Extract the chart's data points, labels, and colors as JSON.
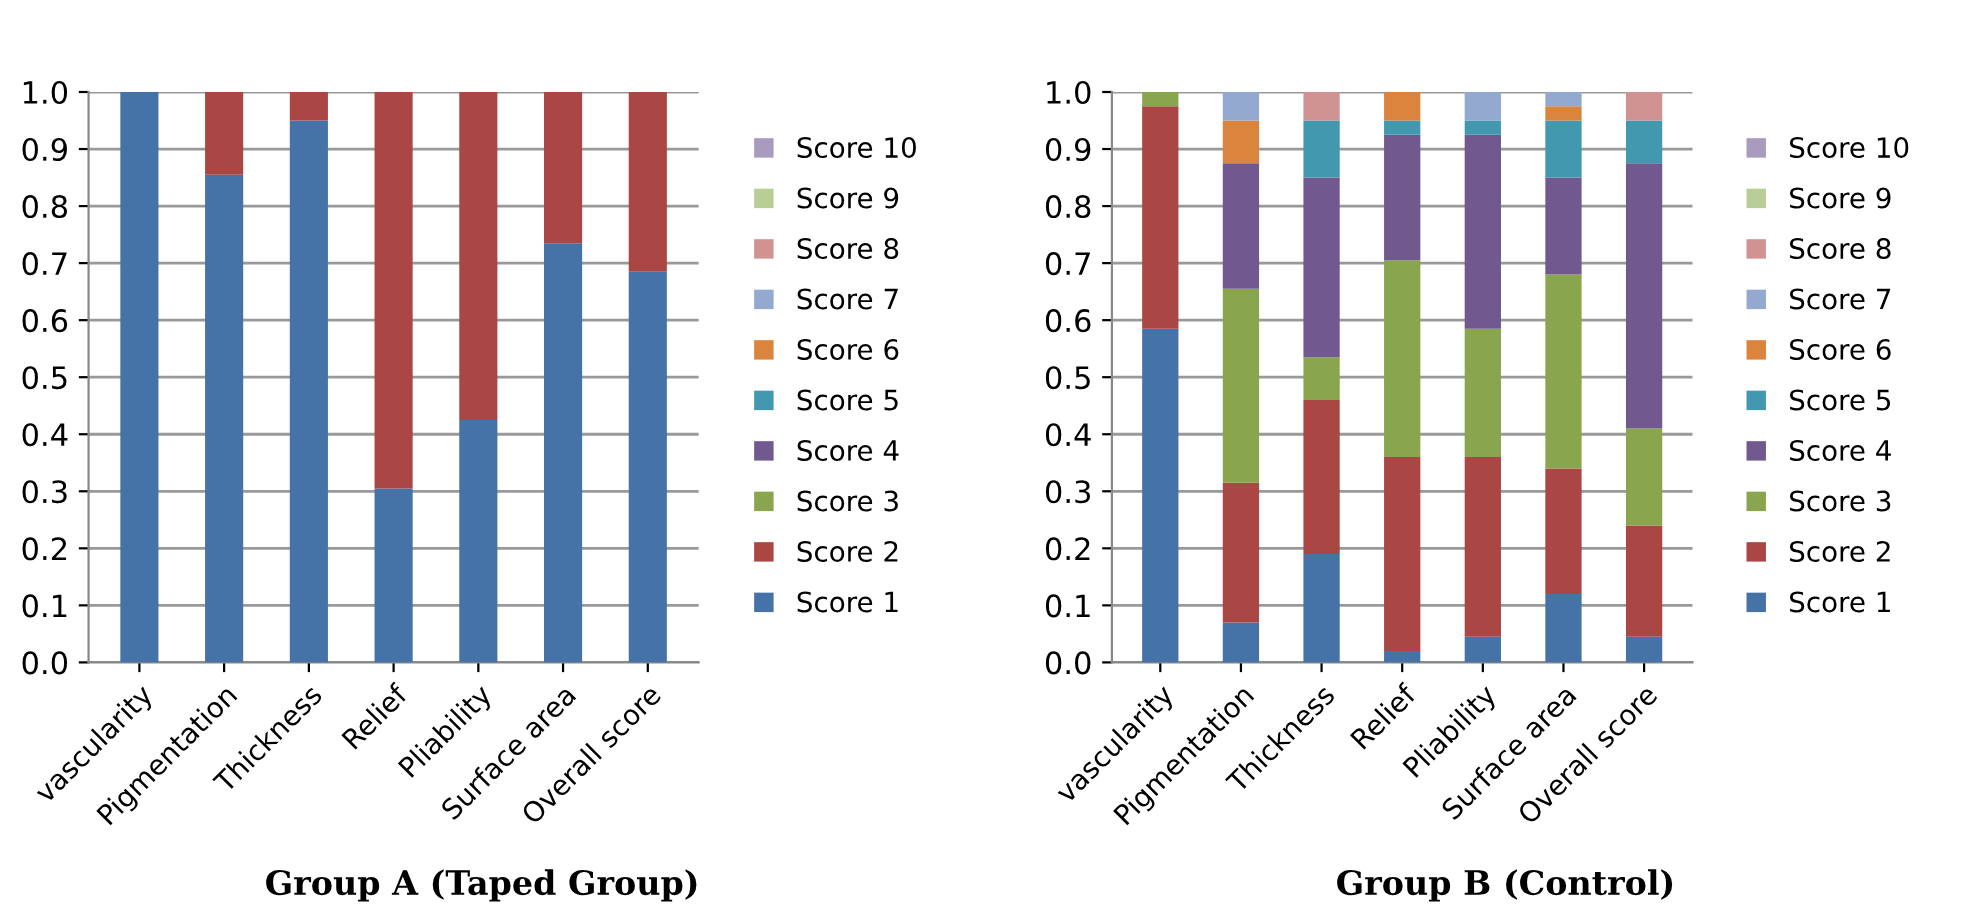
{
  "chart_data": [
    {
      "type": "bar",
      "stacked": true,
      "title": "Group A (Taped Group)",
      "categories": [
        "vascularity",
        "Pigmentation",
        "Thickness",
        "Relief",
        "Pliability",
        "Surface area",
        "Overall score"
      ],
      "ylim": [
        0,
        1
      ],
      "yticks": [
        {
          "value": 0,
          "label": "0.0"
        },
        {
          "value": 0.1,
          "label": "0.1"
        },
        {
          "value": 0.2,
          "label": "0.2"
        },
        {
          "value": 0.3,
          "label": "0.3"
        },
        {
          "value": 0.4,
          "label": "0.4"
        },
        {
          "value": 0.5,
          "label": "0.5"
        },
        {
          "value": 0.6,
          "label": "0.6"
        },
        {
          "value": 0.7,
          "label": "0.7"
        },
        {
          "value": 0.8,
          "label": "0.8"
        },
        {
          "value": 0.9,
          "label": "0.9"
        },
        {
          "value": 1,
          "label": "1.0"
        }
      ],
      "grid": "y",
      "legend": "right",
      "series": [
        {
          "name": "Score 1",
          "color": "#4572a7",
          "values": [
            1.0,
            0.855,
            0.95,
            0.305,
            0.425,
            0.735,
            0.685
          ]
        },
        {
          "name": "Score 2",
          "color": "#aa4643",
          "values": [
            null,
            0.145,
            0.05,
            0.695,
            0.575,
            0.265,
            0.315
          ]
        },
        {
          "name": "Score 3",
          "color": "#89a54e",
          "values": [
            null,
            null,
            null,
            null,
            null,
            null,
            null
          ]
        },
        {
          "name": "Score 4",
          "color": "#71588f",
          "values": [
            null,
            null,
            null,
            null,
            null,
            null,
            null
          ]
        },
        {
          "name": "Score 5",
          "color": "#4198af",
          "values": [
            null,
            null,
            null,
            null,
            null,
            null,
            null
          ]
        },
        {
          "name": "Score 6",
          "color": "#db843d",
          "values": [
            null,
            null,
            null,
            null,
            null,
            null,
            null
          ]
        },
        {
          "name": "Score 7",
          "color": "#93a9cf",
          "values": [
            null,
            null,
            null,
            null,
            null,
            null,
            null
          ]
        },
        {
          "name": "Score 8",
          "color": "#d19392",
          "values": [
            null,
            null,
            null,
            null,
            null,
            null,
            null
          ]
        },
        {
          "name": "Score 9",
          "color": "#b9cd96",
          "values": [
            null,
            null,
            null,
            null,
            null,
            null,
            null
          ]
        },
        {
          "name": "Score 10",
          "color": "#a99bbd",
          "values": [
            null,
            null,
            null,
            null,
            null,
            null,
            null
          ]
        }
      ]
    },
    {
      "type": "bar",
      "stacked": true,
      "title": "Group B (Control)",
      "categories": [
        "vascularity",
        "Pigmentation",
        "Thickness",
        "Relief",
        "Pliability",
        "Surface area",
        "Overall score"
      ],
      "ylim": [
        0,
        1
      ],
      "yticks": [
        {
          "value": 0,
          "label": "0.0"
        },
        {
          "value": 0.1,
          "label": "0.1"
        },
        {
          "value": 0.2,
          "label": "0.2"
        },
        {
          "value": 0.3,
          "label": "0.3"
        },
        {
          "value": 0.4,
          "label": "0.4"
        },
        {
          "value": 0.5,
          "label": "0.5"
        },
        {
          "value": 0.6,
          "label": "0.6"
        },
        {
          "value": 0.7,
          "label": "0.7"
        },
        {
          "value": 0.8,
          "label": "0.8"
        },
        {
          "value": 0.9,
          "label": "0.9"
        },
        {
          "value": 1,
          "label": "1.0"
        }
      ],
      "grid": "y",
      "legend": "right",
      "series": [
        {
          "name": "Score 1",
          "color": "#4572a7",
          "values": [
            0.585,
            0.07,
            0.19,
            0.02,
            0.045,
            0.12,
            0.045
          ]
        },
        {
          "name": "Score 2",
          "color": "#aa4643",
          "values": [
            0.39,
            0.245,
            0.27,
            0.34,
            0.315,
            0.22,
            0.195
          ]
        },
        {
          "name": "Score 3",
          "color": "#89a54e",
          "values": [
            0.025,
            0.34,
            0.075,
            0.345,
            0.225,
            0.34,
            0.17
          ]
        },
        {
          "name": "Score 4",
          "color": "#71588f",
          "values": [
            null,
            0.22,
            0.315,
            0.22,
            0.34,
            0.17,
            0.465
          ]
        },
        {
          "name": "Score 5",
          "color": "#4198af",
          "values": [
            null,
            null,
            0.1,
            0.025,
            0.025,
            0.1,
            0.075
          ]
        },
        {
          "name": "Score 6",
          "color": "#db843d",
          "values": [
            null,
            0.075,
            null,
            0.05,
            null,
            0.025,
            null
          ]
        },
        {
          "name": "Score 7",
          "color": "#93a9cf",
          "values": [
            null,
            0.05,
            null,
            null,
            0.05,
            0.025,
            null
          ]
        },
        {
          "name": "Score 8",
          "color": "#d19392",
          "values": [
            null,
            null,
            0.05,
            null,
            null,
            null,
            0.05
          ]
        },
        {
          "name": "Score 9",
          "color": "#b9cd96",
          "values": [
            null,
            null,
            null,
            null,
            null,
            null,
            null
          ]
        },
        {
          "name": "Score 10",
          "color": "#a99bbd",
          "values": [
            null,
            null,
            null,
            null,
            null,
            null,
            null
          ]
        }
      ]
    }
  ]
}
